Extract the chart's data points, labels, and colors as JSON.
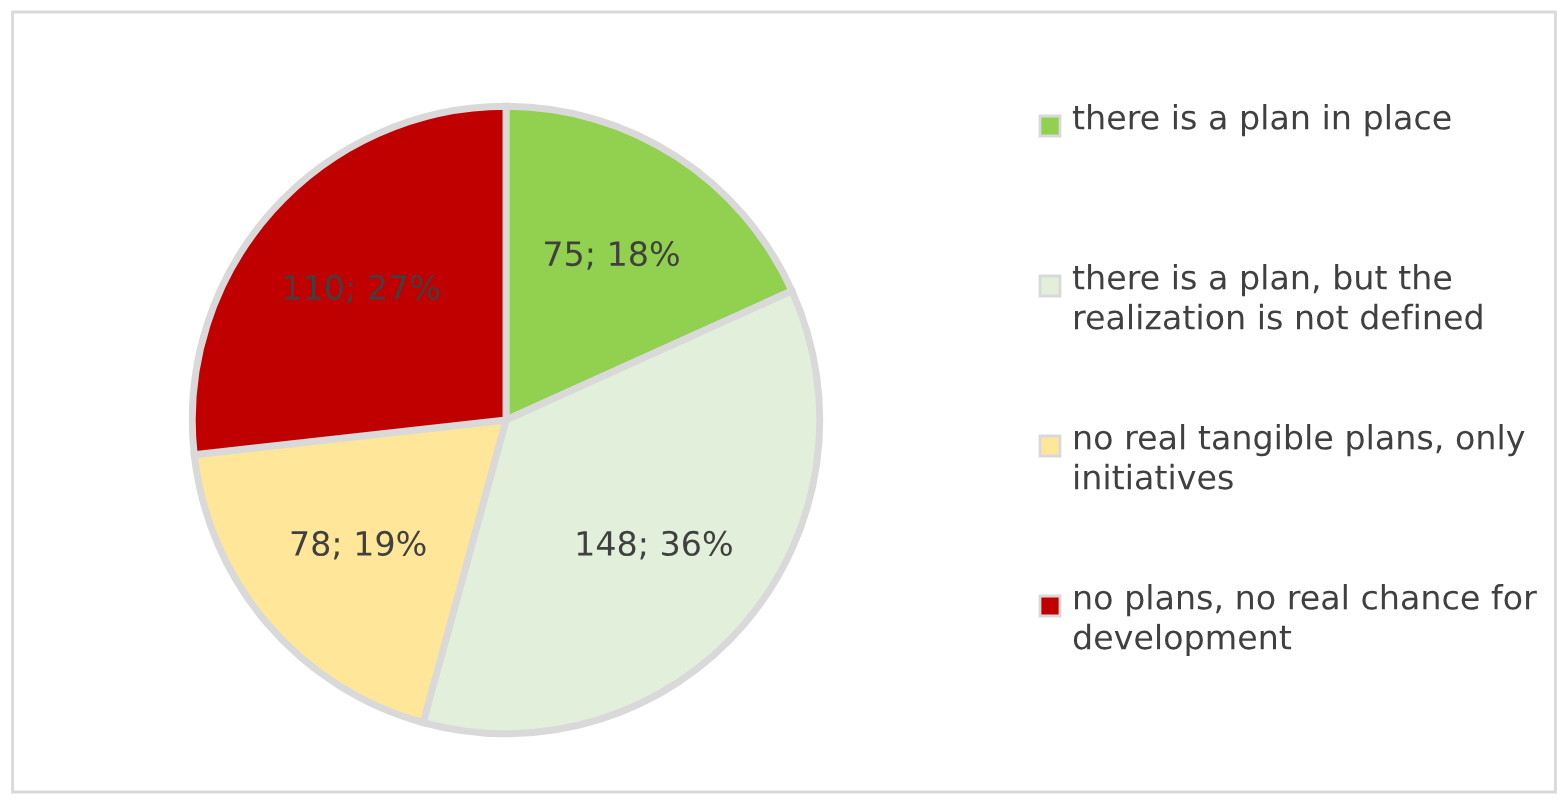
{
  "chart_data": {
    "type": "pie",
    "categories": [
      "there is a plan in place",
      "there is a plan, but the realization is not defined",
      "no real tangible plans, only initiatives",
      "no plans, no real chance for development"
    ],
    "values": [
      75,
      148,
      78,
      110
    ],
    "value_labels": [
      "75; 18%",
      "148; 36%",
      "78; 19%",
      "110; 27%"
    ],
    "colors": [
      "#92d050",
      "#e2efda",
      "#ffe699",
      "#c00000"
    ],
    "legend": "right"
  }
}
